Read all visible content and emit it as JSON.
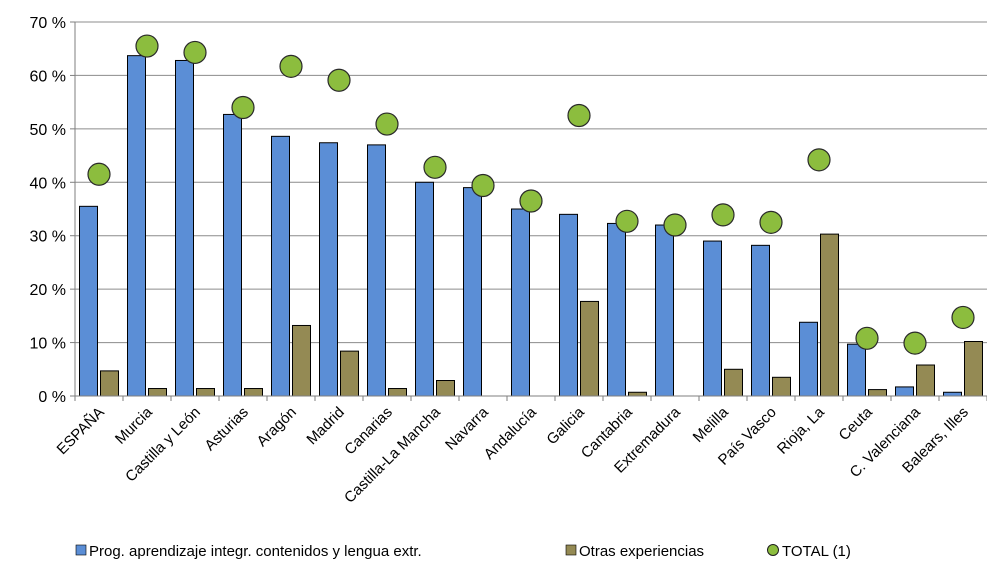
{
  "chart_data": {
    "type": "bar",
    "ylim": [
      0,
      70
    ],
    "yticks": [
      0,
      10,
      20,
      30,
      40,
      50,
      60,
      70
    ],
    "ytick_suffix": " %",
    "grid": true,
    "legend_position": "bottom",
    "categories": [
      "ESPAÑA",
      "Murcia",
      "Castilla y León",
      "Asturias",
      "Aragón",
      "Madrid",
      "Canarias",
      "Castilla-La Mancha",
      "Navarra",
      "Andalucía",
      "Galicia",
      "Cantabria",
      "Extremadura",
      "Melilla",
      "País Vasco",
      "Rioja, La",
      "Ceuta",
      "C. Valenciana",
      "Balears, Illes"
    ],
    "series": [
      {
        "name": "Prog. aprendizaje integr. contenidos y lengua extr.",
        "kind": "bar",
        "color": "#5b8ed6",
        "values": [
          35.5,
          63.7,
          62.8,
          52.7,
          48.6,
          47.4,
          47.0,
          40.0,
          39.0,
          35.0,
          34.0,
          32.3,
          32.0,
          29.0,
          28.2,
          13.8,
          9.7,
          1.7,
          0.7
        ]
      },
      {
        "name": "Otras experiencias",
        "kind": "bar",
        "color": "#948a54",
        "values": [
          4.7,
          1.4,
          1.4,
          1.4,
          13.2,
          8.4,
          1.4,
          2.9,
          0,
          0,
          17.7,
          0.7,
          0,
          5.0,
          3.5,
          30.3,
          1.2,
          5.8,
          10.2
        ]
      },
      {
        "name": "TOTAL (1)",
        "kind": "marker",
        "color": "#8cbd3e",
        "values": [
          41.5,
          65.5,
          64.3,
          54.0,
          61.7,
          59.1,
          50.9,
          42.8,
          39.4,
          36.5,
          52.5,
          32.7,
          32.0,
          33.9,
          32.5,
          44.2,
          10.8,
          9.9,
          14.7
        ]
      }
    ]
  }
}
